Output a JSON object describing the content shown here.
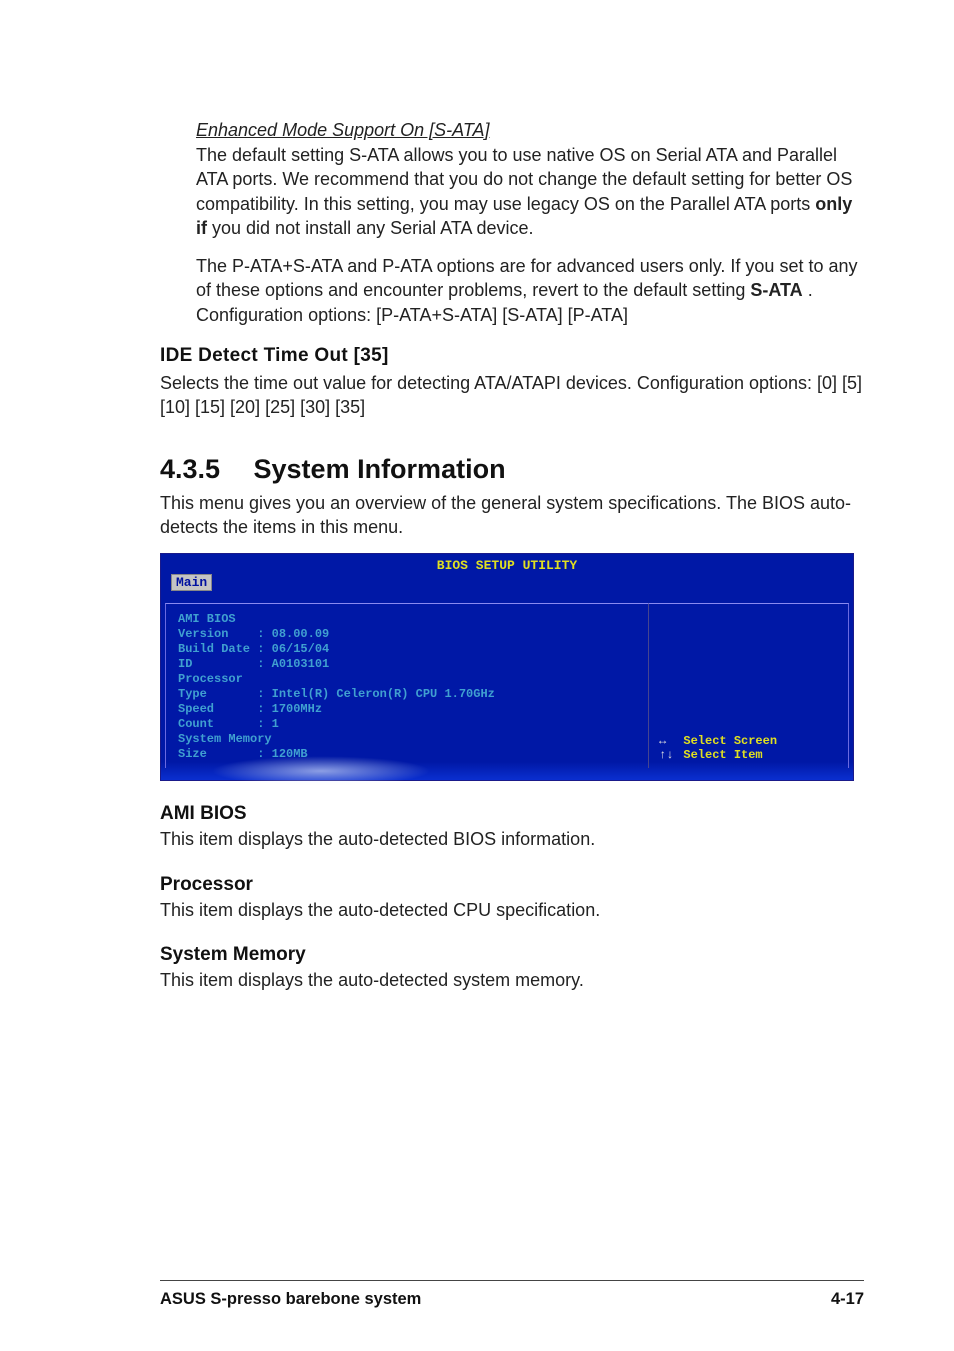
{
  "enhanced": {
    "title": "Enhanced Mode Support On [S-ATA]",
    "para1_a": "The default setting S-ATA allows you to use native OS on Serial ATA and Parallel ATA ports. We recommend that you do not change the default setting for better OS compatibility. In this setting, you may use legacy OS on the Parallel ATA ports ",
    "para1_bold": "only if",
    "para1_b": " you did not install any Serial ATA device.",
    "para2_a": "The P-ATA+S-ATA and P-ATA options are for advanced users only. If you set to any of these options and encounter problems, revert to the default setting ",
    "para2_bold": "S-ATA",
    "para2_b": ". Configuration options: [P-ATA+S-ATA] [S-ATA] [P-ATA]"
  },
  "ide": {
    "title": "IDE Detect Time Out [35]",
    "body": "Selects the time out value for detecting ATA/ATAPI devices. Configuration options: [0] [5] [10] [15] [20] [25] [30] [35]"
  },
  "sysinfo": {
    "num": "4.3.5",
    "title": "System Information",
    "intro": "This menu gives you an overview of the general system specifications. The BIOS auto-detects the items in this menu."
  },
  "bios": {
    "title": "BIOS SETUP UTILITY",
    "tab": "Main",
    "lines": [
      "AMI BIOS",
      "Version    : 08.00.09",
      "Build Date : 06/15/04",
      "ID         : A0103101",
      "",
      "Processor",
      "Type       : Intel(R) Celeron(R) CPU 1.70GHz",
      "Speed      : 1700MHz",
      "Count      : 1",
      "",
      "System Memory",
      "Size       : 120MB"
    ],
    "help": [
      {
        "arrow": "↔",
        "label": "Select Screen"
      },
      {
        "arrow": "↑↓",
        "label": "Select Item"
      }
    ],
    "colors": {
      "bg": "#0018a6",
      "panel_border": "#6a6ae0",
      "yellow": "#e0e020",
      "cyan": "#40a0d0",
      "tab_bg": "#c4c4c4"
    }
  },
  "ami": {
    "title": "AMI BIOS",
    "body": "This item displays the auto-detected BIOS information."
  },
  "proc": {
    "title": "Processor",
    "body": "This item displays the auto-detected CPU specification."
  },
  "mem": {
    "title": "System Memory",
    "body": "This item displays the auto-detected system memory."
  },
  "footer": {
    "left": "ASUS S-presso barebone system",
    "right": "4-17"
  }
}
